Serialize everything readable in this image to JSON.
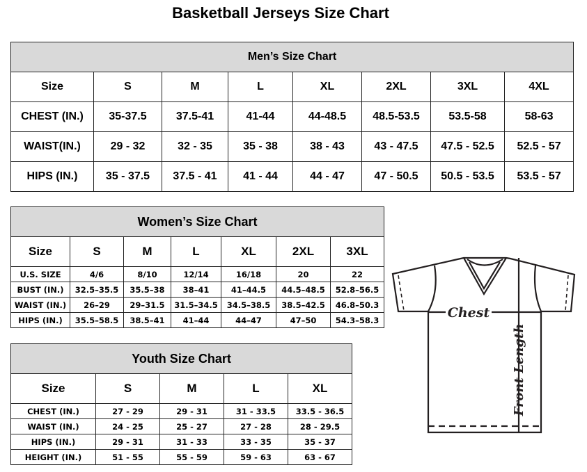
{
  "title": "Basketball Jerseys Size Chart",
  "men": {
    "title": "Men’s Size Chart",
    "rows": [
      [
        "Size",
        "S",
        "M",
        "L",
        "XL",
        "2XL",
        "3XL",
        "4XL"
      ],
      [
        "CHEST (IN.)",
        "35-37.5",
        "37.5-41",
        "41-44",
        "44-48.5",
        "48.5-53.5",
        "53.5-58",
        "58-63"
      ],
      [
        "WAIST(IN.)",
        "29 - 32",
        "32 - 35",
        "35 - 38",
        "38 - 43",
        "43 - 47.5",
        "47.5 - 52.5",
        "52.5 - 57"
      ],
      [
        "HIPS (IN.)",
        "35 - 37.5",
        "37.5 - 41",
        "41 - 44",
        "44 - 47",
        "47 - 50.5",
        "50.5 - 53.5",
        "53.5 - 57"
      ]
    ]
  },
  "women": {
    "title": "Women’s Size Chart",
    "rows": [
      [
        "Size",
        "S",
        "M",
        "L",
        "XL",
        "2XL",
        "3XL"
      ],
      [
        "U.S. SIZE",
        "4/6",
        "8/10",
        "12/14",
        "16/18",
        "20",
        "22"
      ],
      [
        "BUST (IN.)",
        "32.5–35.5",
        "35.5–38",
        "38–41",
        "41–44.5",
        "44.5–48.5",
        "52.8–56.5"
      ],
      [
        "WAIST (IN.)",
        "26–29",
        "29–31.5",
        "31.5–34.5",
        "34.5–38.5",
        "38.5–42.5",
        "46.8–50.3"
      ],
      [
        "HIPS (IN.)",
        "35.5–58.5",
        "38.5–41",
        "41–44",
        "44–47",
        "47–50",
        "54.3–58.3"
      ]
    ]
  },
  "youth": {
    "title": "Youth Size Chart",
    "rows": [
      [
        "Size",
        "S",
        "M",
        "L",
        "XL"
      ],
      [
        "CHEST (IN.)",
        "27 - 29",
        "29 - 31",
        "31 - 33.5",
        "33.5 - 36.5"
      ],
      [
        "WAIST (IN.)",
        "24 - 25",
        "25 - 27",
        "27 - 28",
        "28 - 29.5"
      ],
      [
        "HIPS (IN.)",
        "29 - 31",
        "31 - 33",
        "33 - 35",
        "35 - 37"
      ],
      [
        "HEIGHT (IN.)",
        "51 - 55",
        "55 - 59",
        "59 - 63",
        "63 - 67"
      ]
    ]
  },
  "diagram": {
    "chest_label": "Chest",
    "length_label": "Front Length",
    "icon": "t-shirt-icon"
  }
}
